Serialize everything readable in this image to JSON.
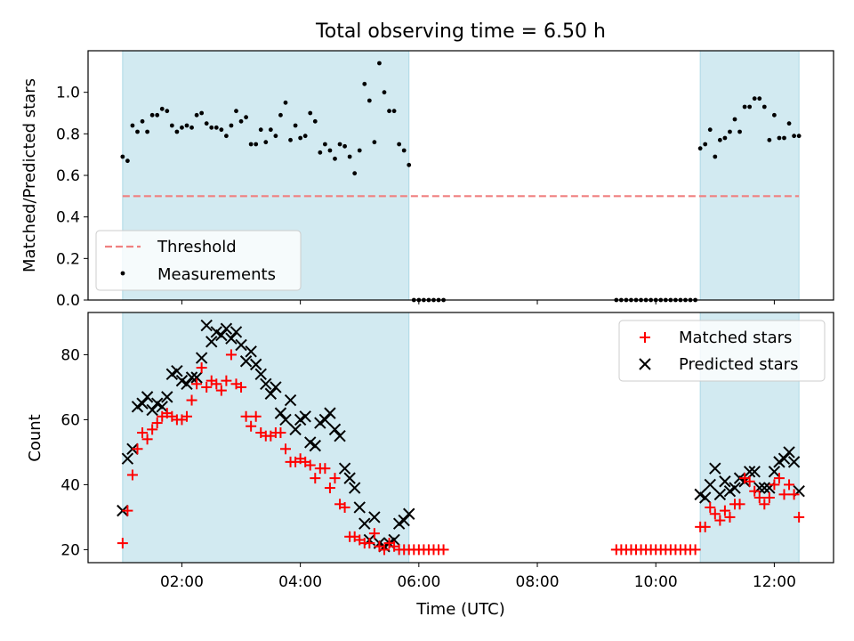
{
  "title": "Total observing time = 6.50 h",
  "colors": {
    "band": "#add8e6",
    "threshold": "#f08080",
    "matched": "#ff0000",
    "predicted": "#000000",
    "measure": "#000000"
  },
  "chart_data": [
    {
      "type": "scatter",
      "ylabel": "Matched/Predicted stars",
      "ylim": [
        0.0,
        1.2
      ],
      "yticks": [
        "0.0",
        "0.2",
        "0.4",
        "0.6",
        "0.8",
        "1.0"
      ],
      "xlim": [
        "00:25",
        "13:00"
      ],
      "observing_windows": [
        [
          "01:00",
          "05:50"
        ],
        [
          "10:45",
          "12:25"
        ]
      ],
      "threshold": {
        "name": "Threshold",
        "value": 0.5,
        "x": [
          "01:00",
          "12:25"
        ]
      },
      "legend": {
        "placement": "lower-left",
        "entries": [
          "Threshold",
          "Measurements"
        ]
      },
      "measurements": {
        "name": "Measurements",
        "x": [
          "01:00",
          "01:05",
          "01:10",
          "01:15",
          "01:20",
          "01:25",
          "01:30",
          "01:35",
          "01:40",
          "01:45",
          "01:50",
          "01:55",
          "02:00",
          "02:05",
          "02:10",
          "02:15",
          "02:20",
          "02:25",
          "02:30",
          "02:35",
          "02:40",
          "02:45",
          "02:50",
          "02:55",
          "03:00",
          "03:05",
          "03:10",
          "03:15",
          "03:20",
          "03:25",
          "03:30",
          "03:35",
          "03:40",
          "03:45",
          "03:50",
          "03:55",
          "04:00",
          "04:05",
          "04:10",
          "04:15",
          "04:20",
          "04:25",
          "04:30",
          "04:35",
          "04:40",
          "04:45",
          "04:50",
          "04:55",
          "05:00",
          "05:05",
          "05:10",
          "05:15",
          "05:20",
          "05:25",
          "05:30",
          "05:35",
          "05:40",
          "05:45",
          "05:50",
          "05:55",
          "06:00",
          "06:05",
          "06:10",
          "06:15",
          "06:20",
          "06:25",
          "09:20",
          "09:25",
          "09:30",
          "09:35",
          "09:40",
          "09:45",
          "09:50",
          "09:55",
          "10:00",
          "10:05",
          "10:10",
          "10:15",
          "10:20",
          "10:25",
          "10:30",
          "10:35",
          "10:40",
          "10:45",
          "10:50",
          "10:55",
          "11:00",
          "11:05",
          "11:10",
          "11:15",
          "11:20",
          "11:25",
          "11:30",
          "11:35",
          "11:40",
          "11:45",
          "11:50",
          "11:55",
          "12:00",
          "12:05",
          "12:10",
          "12:15",
          "12:20",
          "12:25"
        ],
        "y": [
          0.69,
          0.67,
          0.84,
          0.81,
          0.86,
          0.81,
          0.89,
          0.89,
          0.92,
          0.91,
          0.84,
          0.81,
          0.83,
          0.84,
          0.83,
          0.89,
          0.9,
          0.85,
          0.83,
          0.83,
          0.82,
          0.79,
          0.84,
          0.91,
          0.86,
          0.88,
          0.75,
          0.75,
          0.82,
          0.76,
          0.82,
          0.79,
          0.89,
          0.95,
          0.77,
          0.84,
          0.78,
          0.79,
          0.9,
          0.86,
          0.71,
          0.75,
          0.72,
          0.68,
          0.75,
          0.74,
          0.69,
          0.61,
          0.72,
          1.04,
          0.96,
          0.76,
          1.14,
          1.0,
          0.91,
          0.91,
          0.75,
          0.72,
          0.65,
          0.0,
          0.0,
          0.0,
          0.0,
          0.0,
          0.0,
          0.0,
          0.0,
          0.0,
          0.0,
          0.0,
          0.0,
          0.0,
          0.0,
          0.0,
          0.0,
          0.0,
          0.0,
          0.0,
          0.0,
          0.0,
          0.0,
          0.0,
          0.0,
          0.73,
          0.75,
          0.82,
          0.69,
          0.77,
          0.78,
          0.81,
          0.87,
          0.81,
          0.93,
          0.93,
          0.97,
          0.97,
          0.93,
          0.77,
          0.89,
          0.78,
          0.78,
          0.85,
          0.79,
          0.79
        ]
      }
    },
    {
      "type": "scatter",
      "xlabel": "Time (UTC)",
      "ylabel": "Count",
      "ylim": [
        16,
        93
      ],
      "yticks": [
        "20",
        "40",
        "60",
        "80"
      ],
      "xlim": [
        "00:25",
        "13:00"
      ],
      "xticks": [
        "02:00",
        "04:00",
        "06:00",
        "08:00",
        "10:00",
        "12:00"
      ],
      "observing_windows": [
        [
          "01:00",
          "05:50"
        ],
        [
          "10:45",
          "12:25"
        ]
      ],
      "legend": {
        "placement": "top-right",
        "entries": [
          "Matched stars",
          "Predicted stars"
        ]
      },
      "matched": {
        "name": "Matched stars",
        "x": [
          "01:00",
          "01:05",
          "01:10",
          "01:15",
          "01:20",
          "01:25",
          "01:30",
          "01:35",
          "01:40",
          "01:45",
          "01:50",
          "01:55",
          "02:00",
          "02:05",
          "02:10",
          "02:15",
          "02:20",
          "02:25",
          "02:30",
          "02:35",
          "02:40",
          "02:45",
          "02:50",
          "02:55",
          "03:00",
          "03:05",
          "03:10",
          "03:15",
          "03:20",
          "03:25",
          "03:30",
          "03:35",
          "03:40",
          "03:45",
          "03:50",
          "03:55",
          "04:00",
          "04:05",
          "04:10",
          "04:15",
          "04:20",
          "04:25",
          "04:30",
          "04:35",
          "04:40",
          "04:45",
          "04:50",
          "04:55",
          "05:00",
          "05:05",
          "05:10",
          "05:15",
          "05:20",
          "05:25",
          "05:30",
          "05:35",
          "05:40",
          "05:45",
          "05:50",
          "05:55",
          "06:00",
          "06:05",
          "06:10",
          "06:15",
          "06:20",
          "06:25",
          "09:20",
          "09:25",
          "09:30",
          "09:35",
          "09:40",
          "09:45",
          "09:50",
          "09:55",
          "10:00",
          "10:05",
          "10:10",
          "10:15",
          "10:20",
          "10:25",
          "10:30",
          "10:35",
          "10:40",
          "10:45",
          "10:50",
          "10:55",
          "11:00",
          "11:05",
          "11:10",
          "11:15",
          "11:20",
          "11:25",
          "11:30",
          "11:35",
          "11:40",
          "11:45",
          "11:50",
          "11:55",
          "12:00",
          "12:05",
          "12:10",
          "12:15",
          "12:20",
          "12:25"
        ],
        "y": [
          22,
          32,
          43,
          51,
          56,
          54,
          57,
          59,
          61,
          62,
          61,
          60,
          60,
          61,
          66,
          71,
          76,
          70,
          72,
          71,
          69,
          72,
          80,
          71,
          70,
          61,
          58,
          61,
          56,
          55,
          55,
          56,
          56,
          51,
          47,
          47,
          48,
          47,
          46,
          42,
          45,
          45,
          39,
          42,
          34,
          33,
          24,
          24,
          23,
          22,
          22,
          25,
          21,
          20,
          22,
          21,
          20,
          20,
          20,
          20,
          20,
          20,
          20,
          20,
          20,
          20,
          20,
          20,
          20,
          20,
          20,
          20,
          20,
          20,
          20,
          20,
          20,
          20,
          20,
          20,
          20,
          20,
          20,
          27,
          27,
          33,
          31,
          29,
          32,
          30,
          34,
          34,
          42,
          41,
          38,
          36,
          34,
          36,
          40,
          42,
          37,
          40,
          37,
          30
        ]
      },
      "predicted": {
        "name": "Predicted stars",
        "x": [
          "01:00",
          "01:05",
          "01:10",
          "01:15",
          "01:20",
          "01:25",
          "01:30",
          "01:35",
          "01:40",
          "01:45",
          "01:50",
          "01:55",
          "02:00",
          "02:05",
          "02:10",
          "02:15",
          "02:20",
          "02:25",
          "02:30",
          "02:35",
          "02:40",
          "02:45",
          "02:50",
          "02:55",
          "03:00",
          "03:05",
          "03:10",
          "03:15",
          "03:20",
          "03:25",
          "03:30",
          "03:35",
          "03:40",
          "03:45",
          "03:50",
          "03:55",
          "04:00",
          "04:05",
          "04:10",
          "04:15",
          "04:20",
          "04:25",
          "04:30",
          "04:35",
          "04:40",
          "04:45",
          "04:50",
          "04:55",
          "05:00",
          "05:05",
          "05:10",
          "05:15",
          "05:20",
          "05:25",
          "05:30",
          "05:35",
          "05:40",
          "05:45",
          "05:50",
          "10:45",
          "10:50",
          "10:55",
          "11:00",
          "11:05",
          "11:10",
          "11:15",
          "11:20",
          "11:25",
          "11:30",
          "11:35",
          "11:40",
          "11:45",
          "11:50",
          "11:55",
          "12:00",
          "12:05",
          "12:10",
          "12:15",
          "12:20",
          "12:25"
        ],
        "y": [
          32,
          48,
          51,
          64,
          65,
          67,
          63,
          65,
          64,
          67,
          74,
          75,
          72,
          71,
          73,
          73,
          79,
          89,
          84,
          87,
          86,
          88,
          85,
          87,
          83,
          78,
          81,
          77,
          74,
          71,
          68,
          70,
          62,
          60,
          66,
          57,
          60,
          61,
          53,
          52,
          59,
          60,
          62,
          57,
          55,
          45,
          42,
          39,
          33,
          28,
          23,
          30,
          22,
          21,
          22,
          23,
          28,
          29,
          31,
          37,
          36,
          40,
          45,
          37,
          41,
          38,
          39,
          42,
          41,
          44,
          44,
          39,
          39,
          39,
          44,
          47,
          48,
          50,
          47,
          38
        ]
      }
    }
  ]
}
